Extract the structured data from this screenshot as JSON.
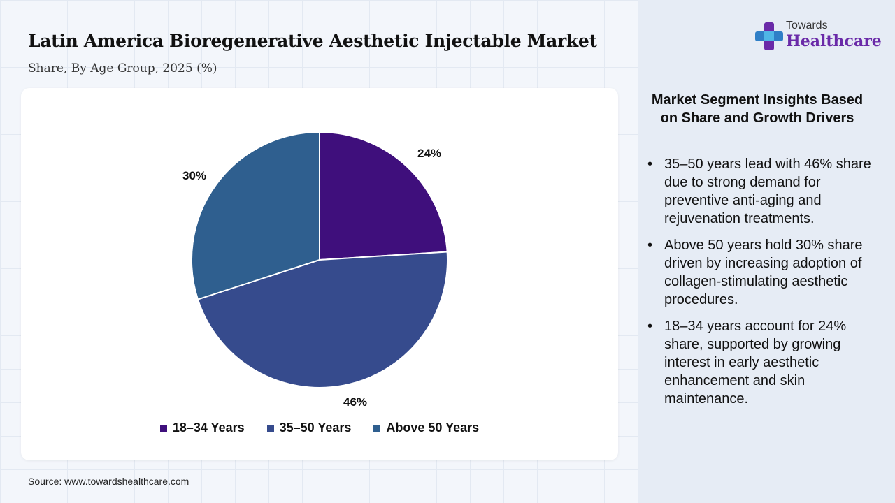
{
  "header": {
    "title": "Latin America Bioregenerative Aesthetic Injectable Market",
    "subtitle": "Share, By Age Group, 2025 (%)"
  },
  "brand": {
    "top": "Towards",
    "main": "Healthcare",
    "icon": "plus-icon",
    "accent": "#6a2aa8"
  },
  "chart_data": {
    "type": "pie",
    "categories": [
      "18–34 Years",
      "35–50 Years",
      "Above 50 Years"
    ],
    "values": [
      24,
      46,
      30
    ],
    "labels": [
      "24%",
      "46%",
      "30%"
    ],
    "colors": [
      "#3f0f7c",
      "#364b8d",
      "#2f5f8f"
    ],
    "legend": "bottom"
  },
  "insights": {
    "title": "Market Segment Insights Based on Share and Growth Drivers",
    "items": [
      "35–50 years lead with 46% share due to strong demand for preventive anti-aging and rejuvenation treatments.",
      "Above 50 years hold 30% share driven by increasing adoption of collagen-stimulating aesthetic procedures.",
      "18–34 years account for 24% share, supported by growing interest in early aesthetic enhancement and skin maintenance."
    ]
  },
  "footer": {
    "source": "Source: www.towardshealthcare.com"
  }
}
